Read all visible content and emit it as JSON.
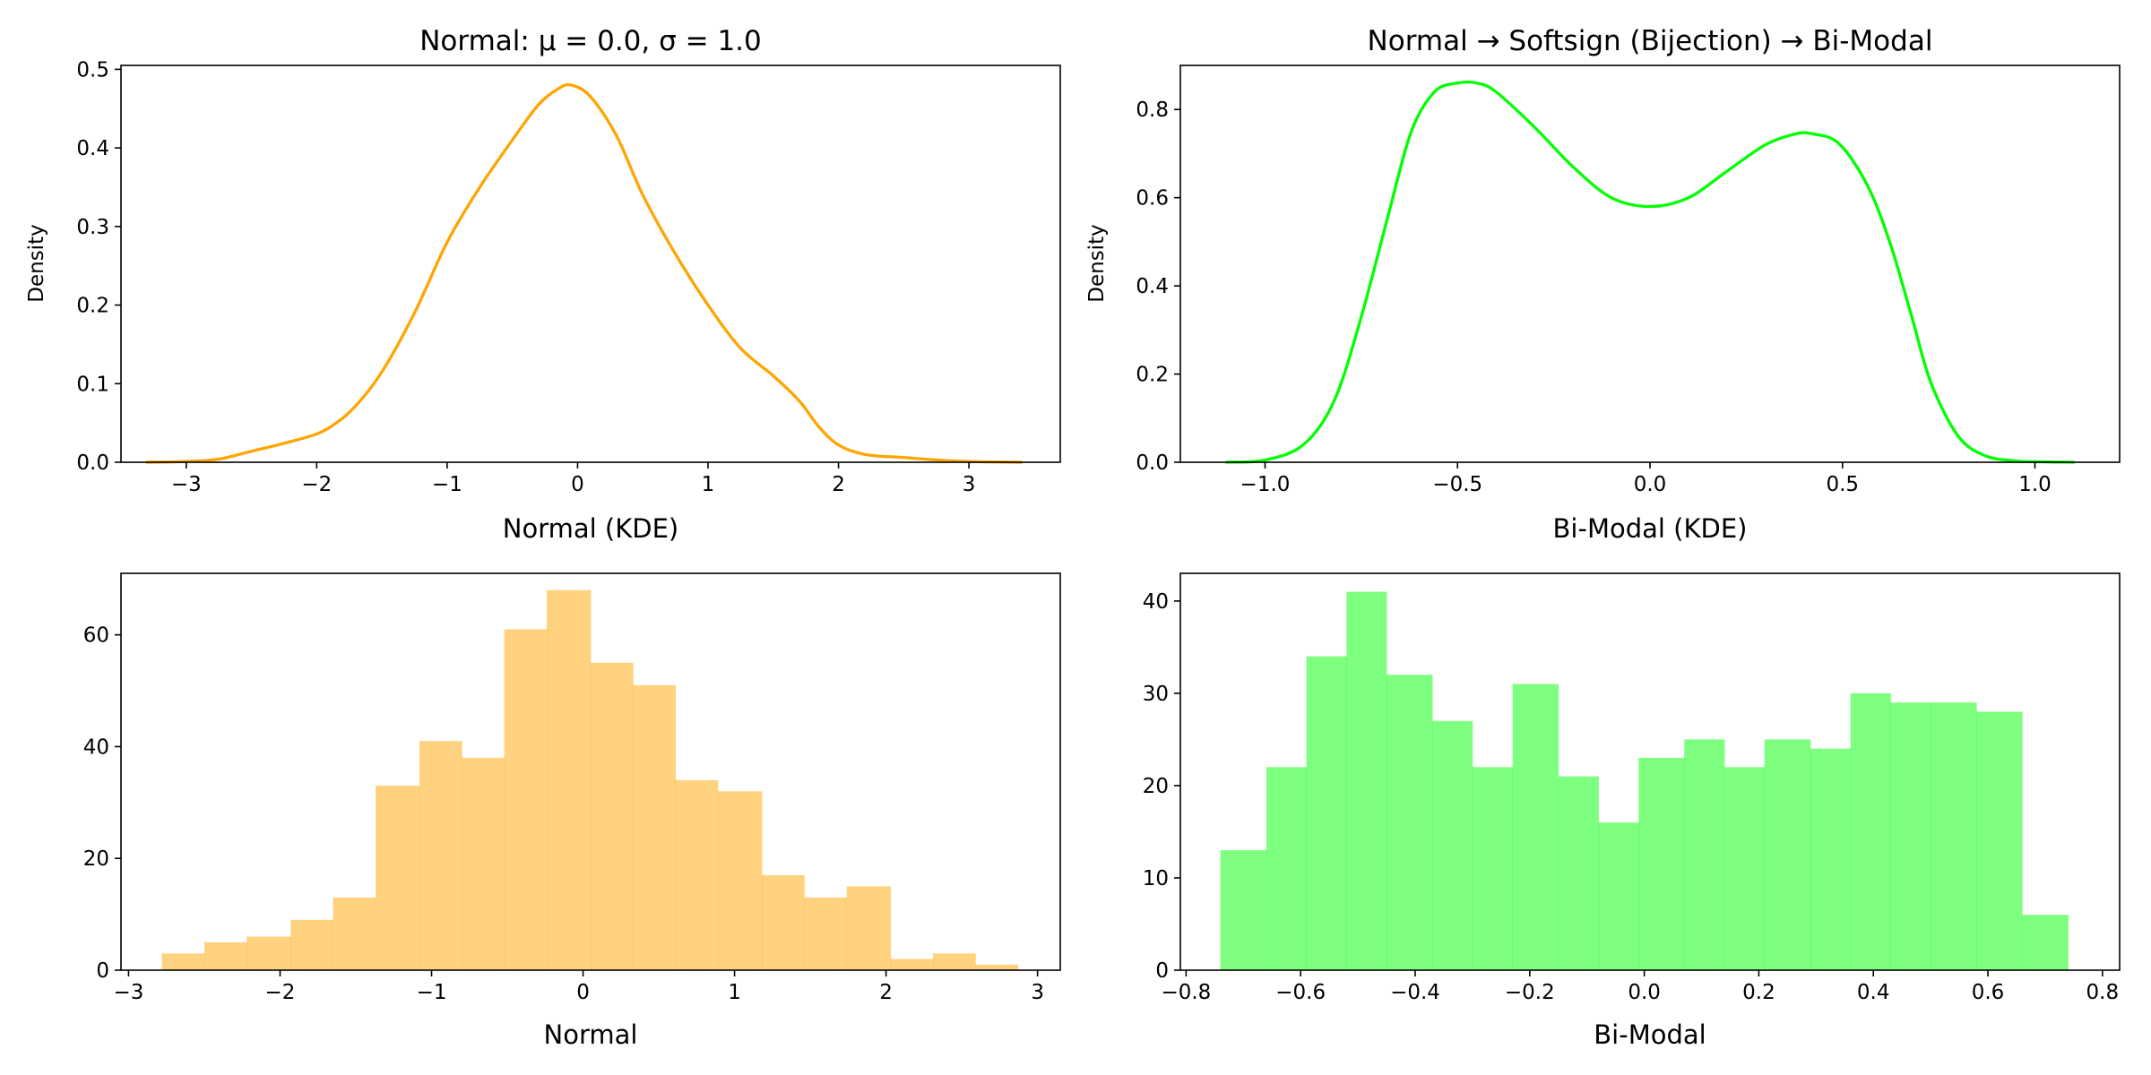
{
  "chart_data": [
    {
      "id": "normal-kde",
      "type": "line",
      "title": "Normal: μ = 0.0, σ = 1.0",
      "xlabel": "Normal (KDE)",
      "ylabel": "Density",
      "xlim": [
        -3.5,
        3.7
      ],
      "ylim": [
        0,
        0.505
      ],
      "xticks": [
        -3,
        -2,
        -1,
        0,
        1,
        2,
        3
      ],
      "xtick_labels": [
        "−3",
        "−2",
        "−1",
        "0",
        "1",
        "2",
        "3"
      ],
      "yticks": [
        0.0,
        0.1,
        0.2,
        0.3,
        0.4,
        0.5
      ],
      "ytick_labels": [
        "0.0",
        "0.1",
        "0.2",
        "0.3",
        "0.4",
        "0.5"
      ],
      "grid": false,
      "color": "#ffa500",
      "series": [
        {
          "x": [
            -3.3,
            -3.0,
            -2.75,
            -2.5,
            -2.25,
            -2.0,
            -1.85,
            -1.7,
            -1.5,
            -1.25,
            -1.0,
            -0.75,
            -0.5,
            -0.3,
            -0.15,
            -0.05,
            0.1,
            0.3,
            0.5,
            0.75,
            1.0,
            1.25,
            1.5,
            1.7,
            1.85,
            2.0,
            2.2,
            2.5,
            2.75,
            3.0,
            3.4
          ],
          "y": [
            0.0,
            0.001,
            0.004,
            0.014,
            0.024,
            0.036,
            0.05,
            0.072,
            0.115,
            0.19,
            0.28,
            0.35,
            0.41,
            0.455,
            0.475,
            0.48,
            0.465,
            0.415,
            0.34,
            0.265,
            0.2,
            0.145,
            0.11,
            0.078,
            0.045,
            0.022,
            0.01,
            0.006,
            0.003,
            0.001,
            0.0
          ]
        }
      ]
    },
    {
      "id": "bimodal-kde",
      "type": "line",
      "title": "Normal → Softsign (Bijection) → Bi-Modal",
      "xlabel": "Bi-Modal (KDE)",
      "ylabel": "Density",
      "xlim": [
        -1.22,
        1.22
      ],
      "ylim": [
        0,
        0.9
      ],
      "xticks": [
        -1.0,
        -0.5,
        0.0,
        0.5,
        1.0
      ],
      "xtick_labels": [
        "−1.0",
        "−0.5",
        "0.0",
        "0.5",
        "1.0"
      ],
      "yticks": [
        0.0,
        0.2,
        0.4,
        0.6,
        0.8
      ],
      "ytick_labels": [
        "0.0",
        "0.2",
        "0.4",
        "0.6",
        "0.8"
      ],
      "grid": false,
      "color": "#00ff00",
      "series": [
        {
          "x": [
            -1.1,
            -1.0,
            -0.9,
            -0.82,
            -0.75,
            -0.68,
            -0.62,
            -0.56,
            -0.5,
            -0.45,
            -0.4,
            -0.3,
            -0.2,
            -0.1,
            0.0,
            0.1,
            0.2,
            0.3,
            0.38,
            0.42,
            0.48,
            0.53,
            0.58,
            0.63,
            0.68,
            0.73,
            0.8,
            0.87,
            0.95,
            1.02,
            1.1
          ],
          "y": [
            0.0,
            0.005,
            0.04,
            0.14,
            0.33,
            0.56,
            0.75,
            0.84,
            0.86,
            0.86,
            0.84,
            0.76,
            0.67,
            0.6,
            0.58,
            0.6,
            0.66,
            0.72,
            0.745,
            0.745,
            0.73,
            0.68,
            0.6,
            0.48,
            0.33,
            0.18,
            0.06,
            0.015,
            0.003,
            0.001,
            0.0
          ]
        }
      ]
    },
    {
      "id": "normal-hist",
      "type": "bar",
      "title": "",
      "xlabel": "Normal",
      "ylabel": "",
      "xlim": [
        -3.05,
        3.15
      ],
      "ylim": [
        0,
        71
      ],
      "xticks": [
        -3,
        -2,
        -1,
        0,
        1,
        2,
        3
      ],
      "xtick_labels": [
        "−3",
        "−2",
        "−1",
        "0",
        "1",
        "2",
        "3"
      ],
      "yticks": [
        0,
        20,
        40,
        60
      ],
      "ytick_labels": [
        "0",
        "20",
        "40",
        "60"
      ],
      "grid": false,
      "color": "#ffa500",
      "opacity": 0.5,
      "bin_edges": [
        -2.78,
        -2.5,
        -2.22,
        -1.93,
        -1.65,
        -1.37,
        -1.08,
        -0.8,
        -0.52,
        -0.24,
        0.05,
        0.33,
        0.61,
        0.89,
        1.18,
        1.46,
        1.74,
        2.03,
        2.31,
        2.59,
        2.87
      ],
      "values": [
        3,
        5,
        6,
        9,
        13,
        33,
        41,
        38,
        61,
        68,
        55,
        51,
        34,
        32,
        17,
        13,
        15,
        2,
        3,
        1
      ]
    },
    {
      "id": "bimodal-hist",
      "type": "bar",
      "title": "",
      "xlabel": "Bi-Modal",
      "ylabel": "",
      "xlim": [
        -0.81,
        0.83
      ],
      "ylim": [
        0,
        43
      ],
      "xticks": [
        -0.8,
        -0.6,
        -0.4,
        -0.2,
        0.0,
        0.2,
        0.4,
        0.6,
        0.8
      ],
      "xtick_labels": [
        "−0.8",
        "−0.6",
        "−0.4",
        "−0.2",
        "0.0",
        "0.2",
        "0.4",
        "0.6",
        "0.8"
      ],
      "yticks": [
        0,
        10,
        20,
        30,
        40
      ],
      "ytick_labels": [
        "0",
        "10",
        "20",
        "30",
        "40"
      ],
      "grid": false,
      "color": "#00ff00",
      "opacity": 0.5,
      "bin_edges": [
        -0.74,
        -0.66,
        -0.59,
        -0.52,
        -0.45,
        -0.37,
        -0.3,
        -0.23,
        -0.15,
        -0.08,
        -0.01,
        0.07,
        0.14,
        0.21,
        0.29,
        0.36,
        0.43,
        0.5,
        0.58,
        0.66,
        0.74
      ],
      "values": [
        13,
        22,
        34,
        41,
        32,
        27,
        22,
        31,
        21,
        16,
        23,
        25,
        22,
        25,
        24,
        30,
        29,
        29,
        28,
        6
      ]
    }
  ]
}
